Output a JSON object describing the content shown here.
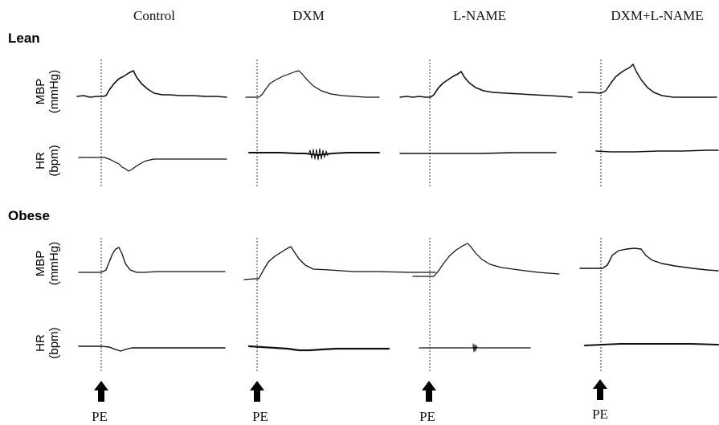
{
  "conditions": [
    "Control",
    "DXM",
    "L-NAME",
    "DXM+L-NAME"
  ],
  "groups": [
    {
      "label": "Lean"
    },
    {
      "label": "Obese"
    }
  ],
  "measures": [
    {
      "line1": "MBP",
      "line2": "(mmHg)"
    },
    {
      "line1": "HR",
      "line2": "(bpm)"
    }
  ],
  "stimulus": {
    "label": "PE"
  },
  "colors": {
    "trace": "#111111",
    "marker": "#333333",
    "arrow": "#000000",
    "background": "#ffffff"
  },
  "icons": {
    "stimulus_marker": "arrow-up-icon"
  }
}
